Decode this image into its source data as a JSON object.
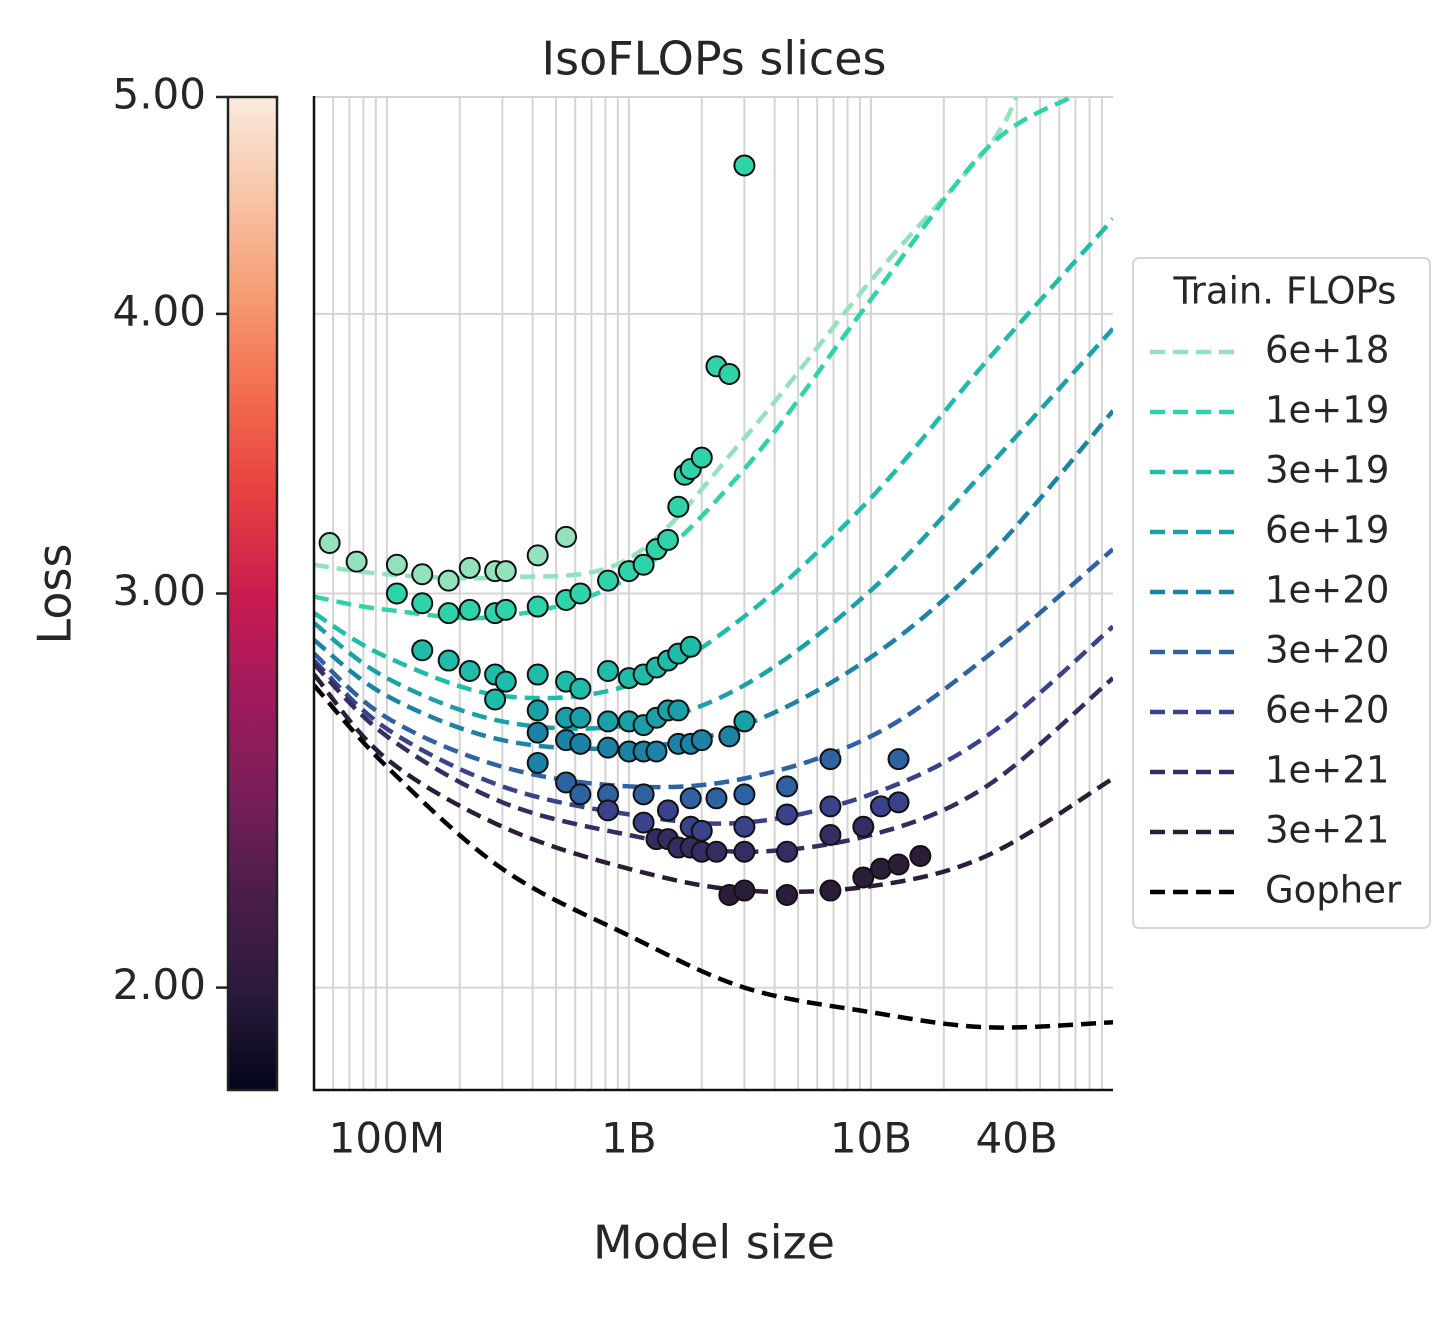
{
  "chart_data": {
    "type": "line",
    "title": "IsoFLOPs slices",
    "x_label": "Model size",
    "y_label": "Loss",
    "x_scale": "log",
    "y_scale": "log",
    "xlim": [
      50000000,
      100000000000
    ],
    "ylim": [
      1.8,
      5.0
    ],
    "xticks": [
      {
        "value": 100000000,
        "label": "100M"
      },
      {
        "value": 1000000000,
        "label": "1B"
      },
      {
        "value": 10000000000,
        "label": "10B"
      },
      {
        "value": 40000000000,
        "label": "40B"
      }
    ],
    "xminorticks": [
      60000000,
      70000000,
      80000000,
      90000000,
      200000000,
      300000000,
      400000000,
      500000000,
      600000000,
      700000000,
      800000000,
      900000000,
      2000000000,
      3000000000,
      4000000000,
      5000000000,
      6000000000,
      7000000000,
      8000000000,
      9000000000,
      20000000000,
      30000000000,
      50000000000,
      60000000000,
      70000000000,
      80000000000,
      90000000000
    ],
    "yticks": [
      {
        "value": 5,
        "label": "5.00"
      },
      {
        "value": 4,
        "label": "4.00"
      },
      {
        "value": 3,
        "label": "3.00"
      },
      {
        "value": 2,
        "label": "2.00"
      }
    ],
    "grid": true,
    "colorbar_colors": [
      "#03051a",
      "#2b1a3d",
      "#4c1d4b",
      "#7a1e5a",
      "#a11a5b",
      "#cb1b4f",
      "#e83f3f",
      "#f26c4f",
      "#f69c73",
      "#f8c4a7",
      "#faebdd"
    ],
    "legend_title": "Train. FLOPs",
    "legend_position": "right",
    "series": [
      {
        "name": "6e+18",
        "color": "#94e2bd",
        "x": [
          50000000,
          100000000,
          300000000,
          1000000000,
          3000000000,
          10000000000,
          30000000000,
          40000000000
        ],
        "values": [
          3.09,
          3.06,
          3.05,
          3.11,
          3.52,
          4.14,
          4.74,
          5.0
        ],
        "points_x": [
          58000000,
          75000000,
          110000000,
          140000000,
          180000000,
          220000000,
          280000000,
          310000000,
          420000000,
          550000000
        ],
        "points_values": [
          3.16,
          3.1,
          3.09,
          3.06,
          3.04,
          3.08,
          3.07,
          3.07,
          3.12,
          3.18
        ]
      },
      {
        "name": "1e+19",
        "color": "#2fd3a9",
        "x": [
          50000000,
          100000000,
          300000000,
          1000000000,
          3000000000,
          10000000000,
          30000000000,
          67000000000
        ],
        "values": [
          2.99,
          2.95,
          2.93,
          3.05,
          3.41,
          4.06,
          4.74,
          5.0
        ],
        "points_x": [
          110000000,
          140000000,
          180000000,
          220000000,
          280000000,
          310000000,
          420000000,
          550000000,
          630000000,
          820000000,
          1000000000,
          1150000000,
          1300000000,
          1450000000,
          1600000000,
          1700000000,
          1800000000,
          2000000000,
          2300000000,
          2600000000,
          3000000000
        ],
        "points_values": [
          3.0,
          2.97,
          2.94,
          2.95,
          2.94,
          2.95,
          2.96,
          2.98,
          3.0,
          3.04,
          3.07,
          3.09,
          3.14,
          3.17,
          3.28,
          3.39,
          3.41,
          3.45,
          3.79,
          3.76,
          4.66
        ]
      },
      {
        "name": "3e+19",
        "color": "#1fbcaa",
        "x": [
          50000000,
          100000000,
          300000000,
          1000000000,
          3000000000,
          10000000000,
          30000000000,
          100000000000
        ],
        "values": [
          2.94,
          2.81,
          2.7,
          2.73,
          2.93,
          3.31,
          3.81,
          4.41
        ],
        "points_x": [
          140000000,
          180000000,
          220000000,
          280000000,
          280000000,
          310000000,
          420000000,
          550000000,
          630000000,
          820000000,
          1000000000,
          1150000000,
          1300000000,
          1450000000,
          1600000000,
          1800000000
        ],
        "points_values": [
          2.83,
          2.8,
          2.77,
          2.76,
          2.69,
          2.74,
          2.76,
          2.74,
          2.72,
          2.77,
          2.75,
          2.76,
          2.78,
          2.8,
          2.82,
          2.84
        ]
      },
      {
        "name": "6e+19",
        "color": "#1aa1a8",
        "x": [
          50000000,
          100000000,
          300000000,
          1000000000,
          3000000000,
          10000000000,
          30000000000,
          100000000000
        ],
        "values": [
          2.91,
          2.75,
          2.63,
          2.62,
          2.73,
          3.01,
          3.41,
          3.94
        ],
        "points_x": [
          420000000,
          550000000,
          630000000,
          820000000,
          1000000000,
          1150000000,
          1300000000,
          1450000000,
          1600000000,
          3000000000
        ],
        "points_values": [
          2.66,
          2.64,
          2.64,
          2.63,
          2.63,
          2.62,
          2.64,
          2.66,
          2.66,
          2.63
        ]
      },
      {
        "name": "1e+20",
        "color": "#1c82a6",
        "x": [
          50000000,
          100000000,
          300000000,
          1000000000,
          3000000000,
          10000000000,
          30000000000,
          100000000000
        ],
        "values": [
          2.86,
          2.7,
          2.58,
          2.56,
          2.62,
          2.81,
          3.11,
          3.62
        ],
        "points_x": [
          420000000,
          420000000,
          550000000,
          630000000,
          820000000,
          1000000000,
          1150000000,
          1300000000,
          1600000000,
          1800000000,
          2000000000,
          2600000000
        ],
        "points_values": [
          2.6,
          2.52,
          2.58,
          2.57,
          2.56,
          2.55,
          2.55,
          2.55,
          2.57,
          2.57,
          2.58,
          2.59
        ]
      },
      {
        "name": "3e+20",
        "color": "#2f62a0",
        "x": [
          50000000,
          100000000,
          300000000,
          1000000000,
          3000000000,
          10000000000,
          30000000000,
          100000000000
        ],
        "values": [
          2.82,
          2.64,
          2.51,
          2.46,
          2.48,
          2.59,
          2.81,
          3.14
        ],
        "points_x": [
          550000000,
          630000000,
          820000000,
          1150000000,
          1800000000,
          2300000000,
          3000000000,
          4500000000,
          6800000000,
          13000000000
        ],
        "points_values": [
          2.47,
          2.44,
          2.44,
          2.44,
          2.43,
          2.43,
          2.44,
          2.46,
          2.53,
          2.53
        ]
      },
      {
        "name": "6e+20",
        "color": "#3a428a",
        "x": [
          50000000,
          100000000,
          300000000,
          1000000000,
          3000000000,
          10000000000,
          30000000000,
          100000000000
        ],
        "values": [
          2.8,
          2.61,
          2.46,
          2.39,
          2.37,
          2.44,
          2.59,
          2.9
        ],
        "points_x": [
          820000000,
          1150000000,
          1450000000,
          1800000000,
          2000000000,
          3000000000,
          4500000000,
          6800000000,
          11000000000,
          13000000000
        ],
        "points_values": [
          2.4,
          2.37,
          2.4,
          2.36,
          2.35,
          2.36,
          2.39,
          2.41,
          2.41,
          2.42
        ]
      },
      {
        "name": "1e+21",
        "color": "#342d62",
        "x": [
          50000000,
          100000000,
          300000000,
          1000000000,
          3000000000,
          10000000000,
          30000000000,
          100000000000
        ],
        "values": [
          2.79,
          2.59,
          2.42,
          2.34,
          2.3,
          2.34,
          2.46,
          2.75
        ],
        "points_x": [
          1300000000,
          1450000000,
          1600000000,
          1800000000,
          2000000000,
          2300000000,
          3000000000,
          4500000000,
          6800000000,
          9300000000
        ],
        "points_values": [
          2.33,
          2.33,
          2.31,
          2.31,
          2.3,
          2.3,
          2.3,
          2.3,
          2.34,
          2.36
        ]
      },
      {
        "name": "3e+21",
        "color": "#2b1c38",
        "x": [
          50000000,
          100000000,
          300000000,
          1000000000,
          3000000000,
          10000000000,
          30000000000,
          100000000000
        ],
        "values": [
          2.76,
          2.53,
          2.36,
          2.26,
          2.21,
          2.22,
          2.29,
          2.48
        ],
        "points_x": [
          2600000000,
          3000000000,
          4500000000,
          6800000000,
          9300000000,
          11000000000,
          13000000000,
          16000000000
        ],
        "points_values": [
          2.2,
          2.21,
          2.2,
          2.21,
          2.24,
          2.26,
          2.27,
          2.29
        ]
      },
      {
        "name": "Gopher",
        "color": "#000000",
        "x": [
          50000000,
          100000000,
          300000000,
          1000000000,
          3000000000,
          10000000000,
          30000000000,
          100000000000
        ],
        "values": [
          2.73,
          2.51,
          2.26,
          2.11,
          2.0,
          1.95,
          1.92,
          1.93
        ],
        "points_x": [],
        "points_values": []
      }
    ]
  }
}
